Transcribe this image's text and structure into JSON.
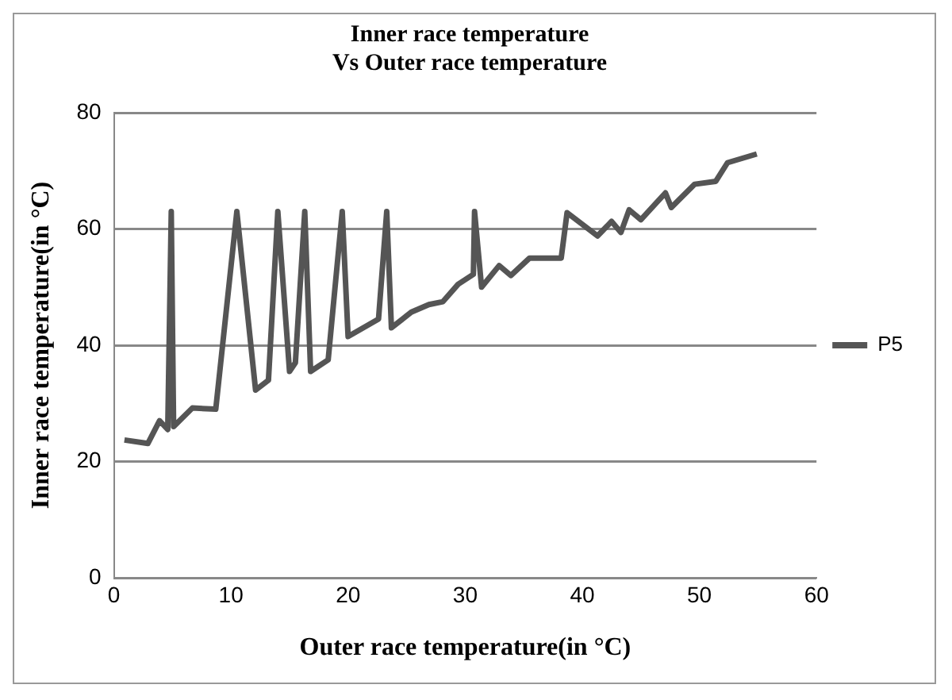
{
  "chart_data": {
    "type": "line",
    "title": [
      "Inner race temperature",
      "Vs Outer race temperature"
    ],
    "xlabel": "Outer race temperature(in °C)",
    "ylabel": "Inner race temperature(in °C)",
    "xlim": [
      0,
      60
    ],
    "xticks": [
      0,
      10,
      20,
      30,
      40,
      50,
      60
    ],
    "ylim": [
      0,
      80
    ],
    "yticks": [
      0,
      20,
      40,
      60,
      80
    ],
    "grid": "y",
    "legend": "right",
    "marker": "none",
    "line_style": "solid",
    "series": [
      {
        "name": "P5",
        "color": "#555555",
        "x": [
          0.9,
          2.9,
          3.9,
          4.6,
          4.9,
          5.1,
          6.7,
          8.7,
          10.5,
          12.1,
          13.2,
          14.0,
          15.0,
          15.5,
          16.3,
          16.8,
          18.3,
          19.5,
          20.0,
          21.3,
          22.6,
          23.3,
          23.7,
          25.4,
          26.9,
          28.1,
          29.4,
          30.7,
          30.8,
          31.4,
          32.9,
          33.9,
          35.5,
          38.2,
          38.7,
          41.3,
          42.5,
          43.3,
          44.0,
          45.0,
          47.1,
          47.6,
          49.6,
          51.4,
          52.4,
          54.9
        ],
        "values": [
          23.7,
          23.1,
          27,
          25.5,
          63,
          26,
          29.2,
          29,
          63,
          32.3,
          34,
          63,
          35.5,
          37,
          63,
          35.5,
          37.5,
          63,
          41.5,
          43,
          44.5,
          63,
          43,
          45.7,
          47,
          47.5,
          50.5,
          52.2,
          63,
          50,
          53.7,
          52,
          55,
          55,
          62.8,
          58.8,
          61.3,
          59.4,
          63.3,
          61.6,
          66.2,
          63.7,
          67.7,
          68.2,
          71.4,
          72.9
        ]
      }
    ]
  }
}
